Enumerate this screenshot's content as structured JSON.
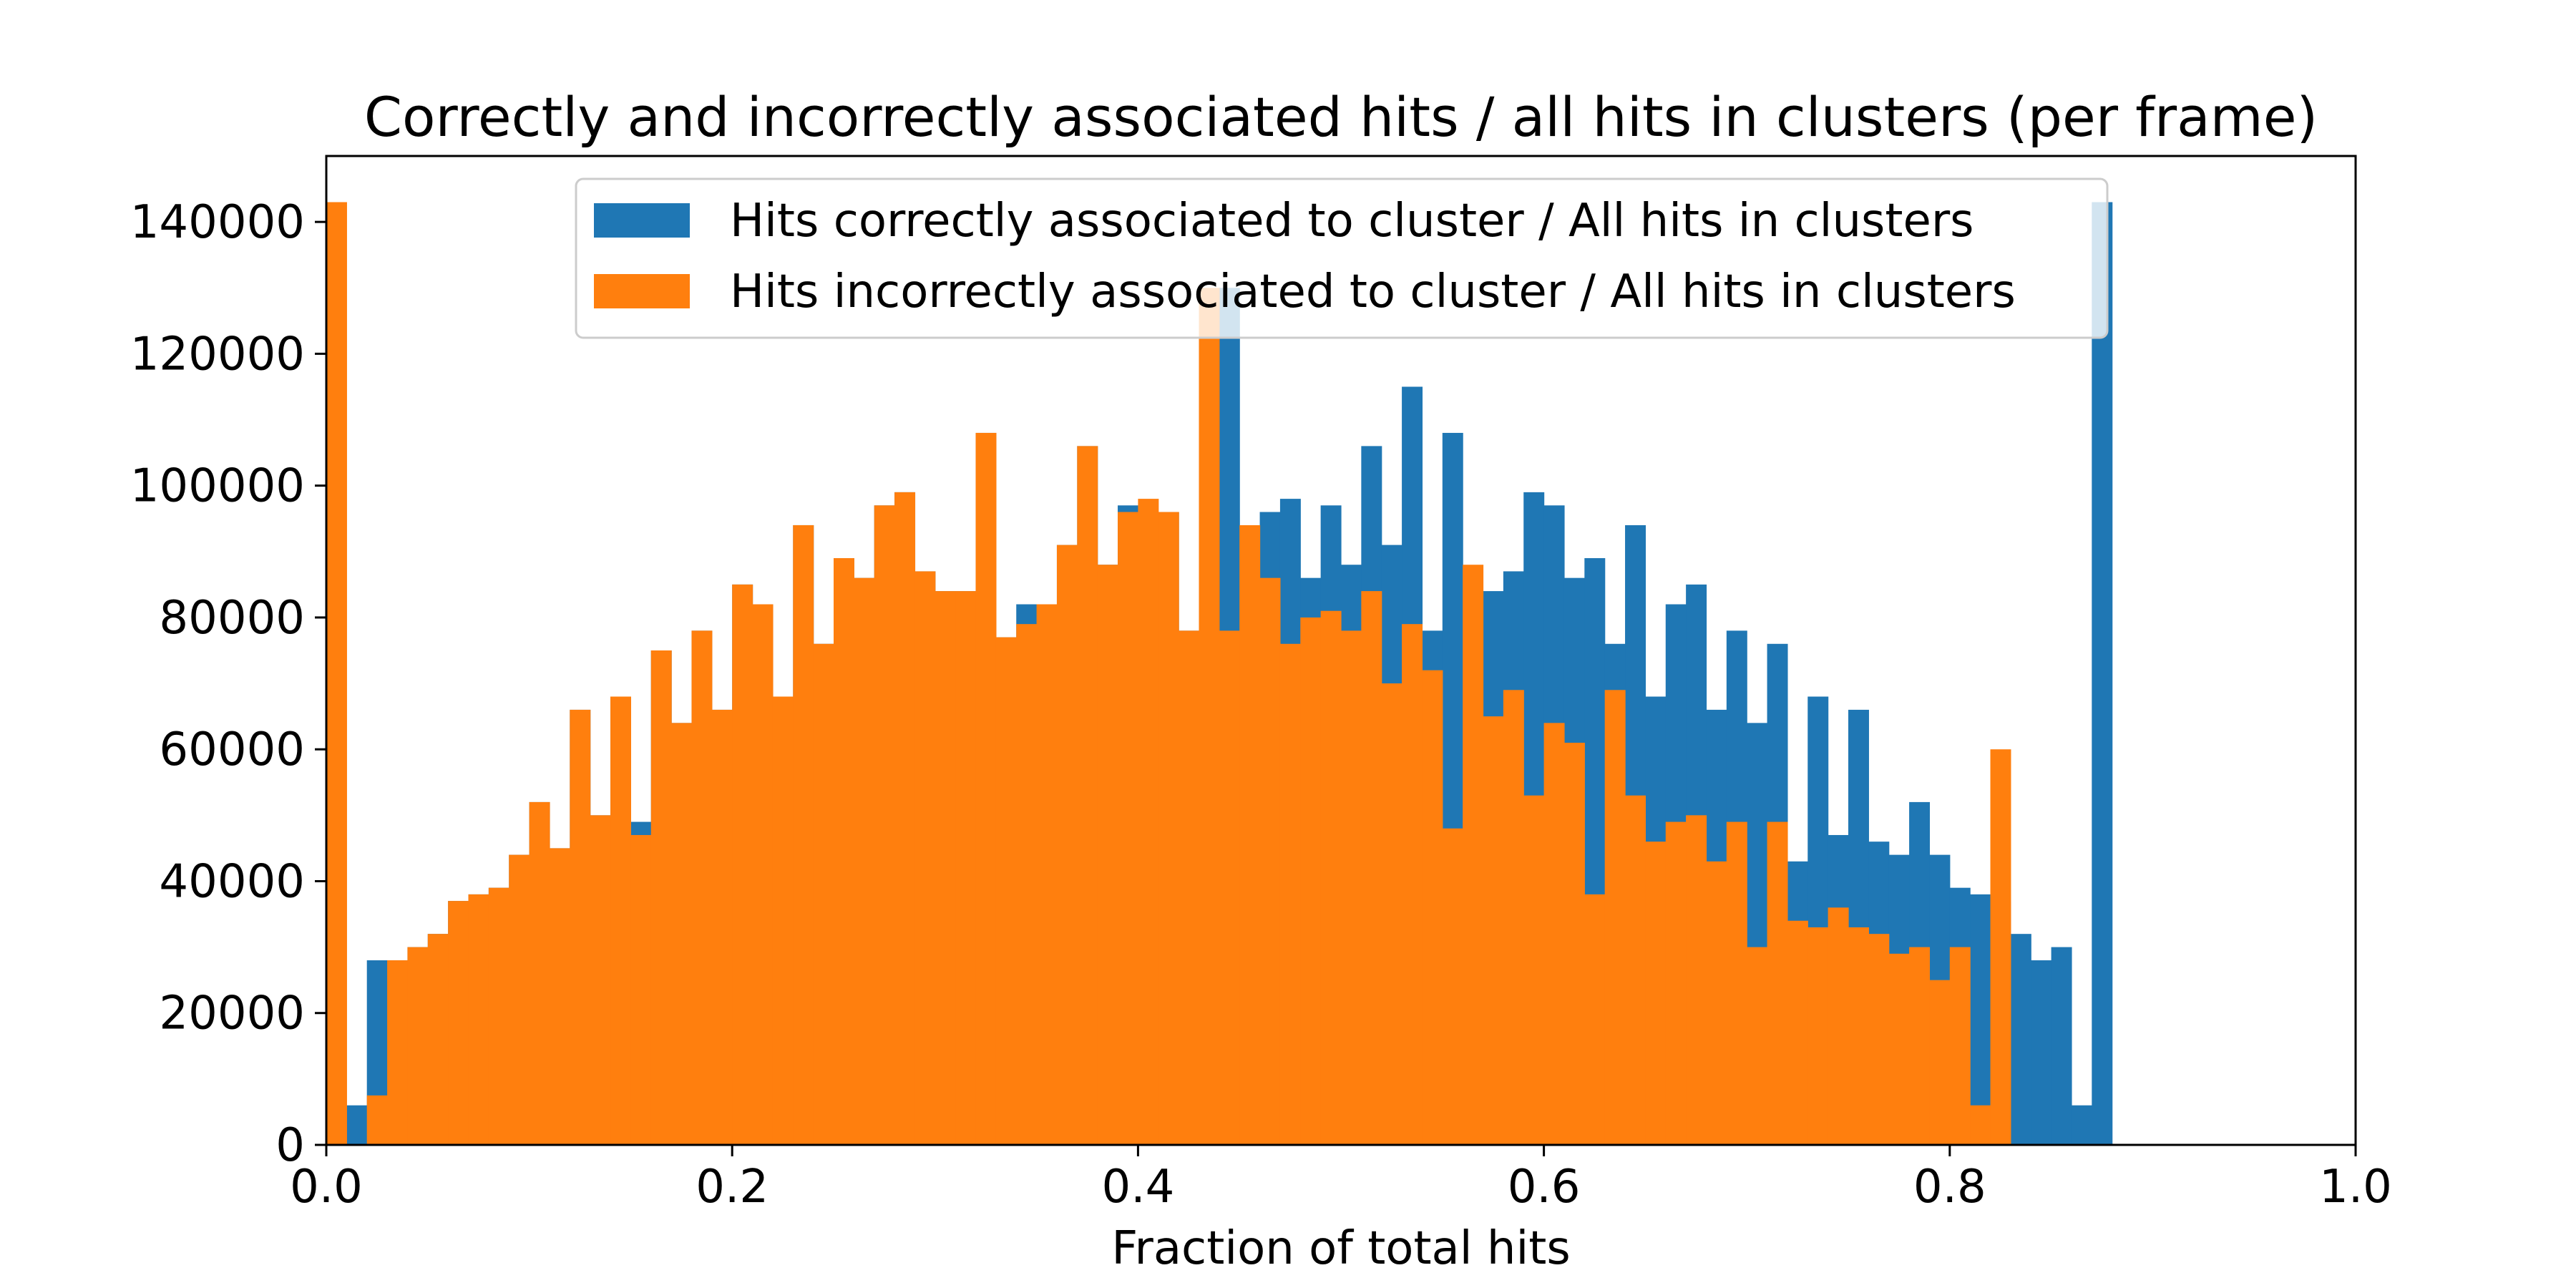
{
  "chart_data": {
    "type": "bar",
    "title": "Correctly and incorrectly associated hits / all hits in clusters (per frame)",
    "xlabel": "Fraction of total hits",
    "ylabel": "",
    "xlim": [
      0.0,
      1.0
    ],
    "ylim": [
      0,
      150000
    ],
    "x_ticks": [
      "0.0",
      "0.2",
      "0.4",
      "0.6",
      "0.8",
      "1.0"
    ],
    "y_ticks": [
      "0",
      "20000",
      "40000",
      "60000",
      "80000",
      "100000",
      "120000",
      "140000"
    ],
    "bin_width": 0.01,
    "legend_position": "upper center",
    "grid": false,
    "series": [
      {
        "name": "Hits correctly associated to cluster / All hits in clusters",
        "color": "#1f77b4",
        "values": [
          0,
          6000,
          28000,
          28000,
          30000,
          32000,
          37000,
          38000,
          39000,
          44000,
          52000,
          45000,
          66000,
          50000,
          68000,
          49000,
          75000,
          64000,
          78000,
          66000,
          85000,
          82000,
          68000,
          94000,
          76000,
          89000,
          86000,
          97000,
          99000,
          87000,
          84000,
          84000,
          108000,
          77000,
          82000,
          79000,
          91000,
          106000,
          88000,
          97000,
          96000,
          96000,
          78000,
          57000,
          130000,
          78000,
          96000,
          98000,
          86000,
          97000,
          88000,
          106000,
          91000,
          115000,
          78000,
          108000,
          84000,
          84000,
          87000,
          99000,
          97000,
          86000,
          89000,
          76000,
          94000,
          68000,
          82000,
          85000,
          66000,
          78000,
          64000,
          76000,
          43000,
          68000,
          47000,
          66000,
          46000,
          44000,
          52000,
          44000,
          39000,
          38000,
          37000,
          32000,
          28000,
          30000,
          6000,
          143000
        ]
      },
      {
        "name": "Hits incorrectly associated to cluster / All hits in clusters",
        "color": "#ff7f0e",
        "values": [
          143000,
          0,
          7500,
          28000,
          30000,
          32000,
          37000,
          38000,
          39000,
          44000,
          52000,
          45000,
          66000,
          50000,
          68000,
          47000,
          75000,
          64000,
          78000,
          66000,
          85000,
          82000,
          68000,
          94000,
          76000,
          89000,
          86000,
          97000,
          99000,
          87000,
          84000,
          84000,
          108000,
          77000,
          79000,
          82000,
          91000,
          106000,
          88000,
          96000,
          98000,
          96000,
          78000,
          130000,
          78000,
          94000,
          86000,
          76000,
          80000,
          81000,
          78000,
          84000,
          70000,
          79000,
          72000,
          48000,
          88000,
          65000,
          69000,
          53000,
          64000,
          61000,
          38000,
          69000,
          53000,
          46000,
          49000,
          50000,
          43000,
          49000,
          30000,
          49000,
          34000,
          33000,
          36000,
          33000,
          32000,
          29000,
          30000,
          25000,
          30000,
          6000,
          60000
        ]
      }
    ]
  }
}
